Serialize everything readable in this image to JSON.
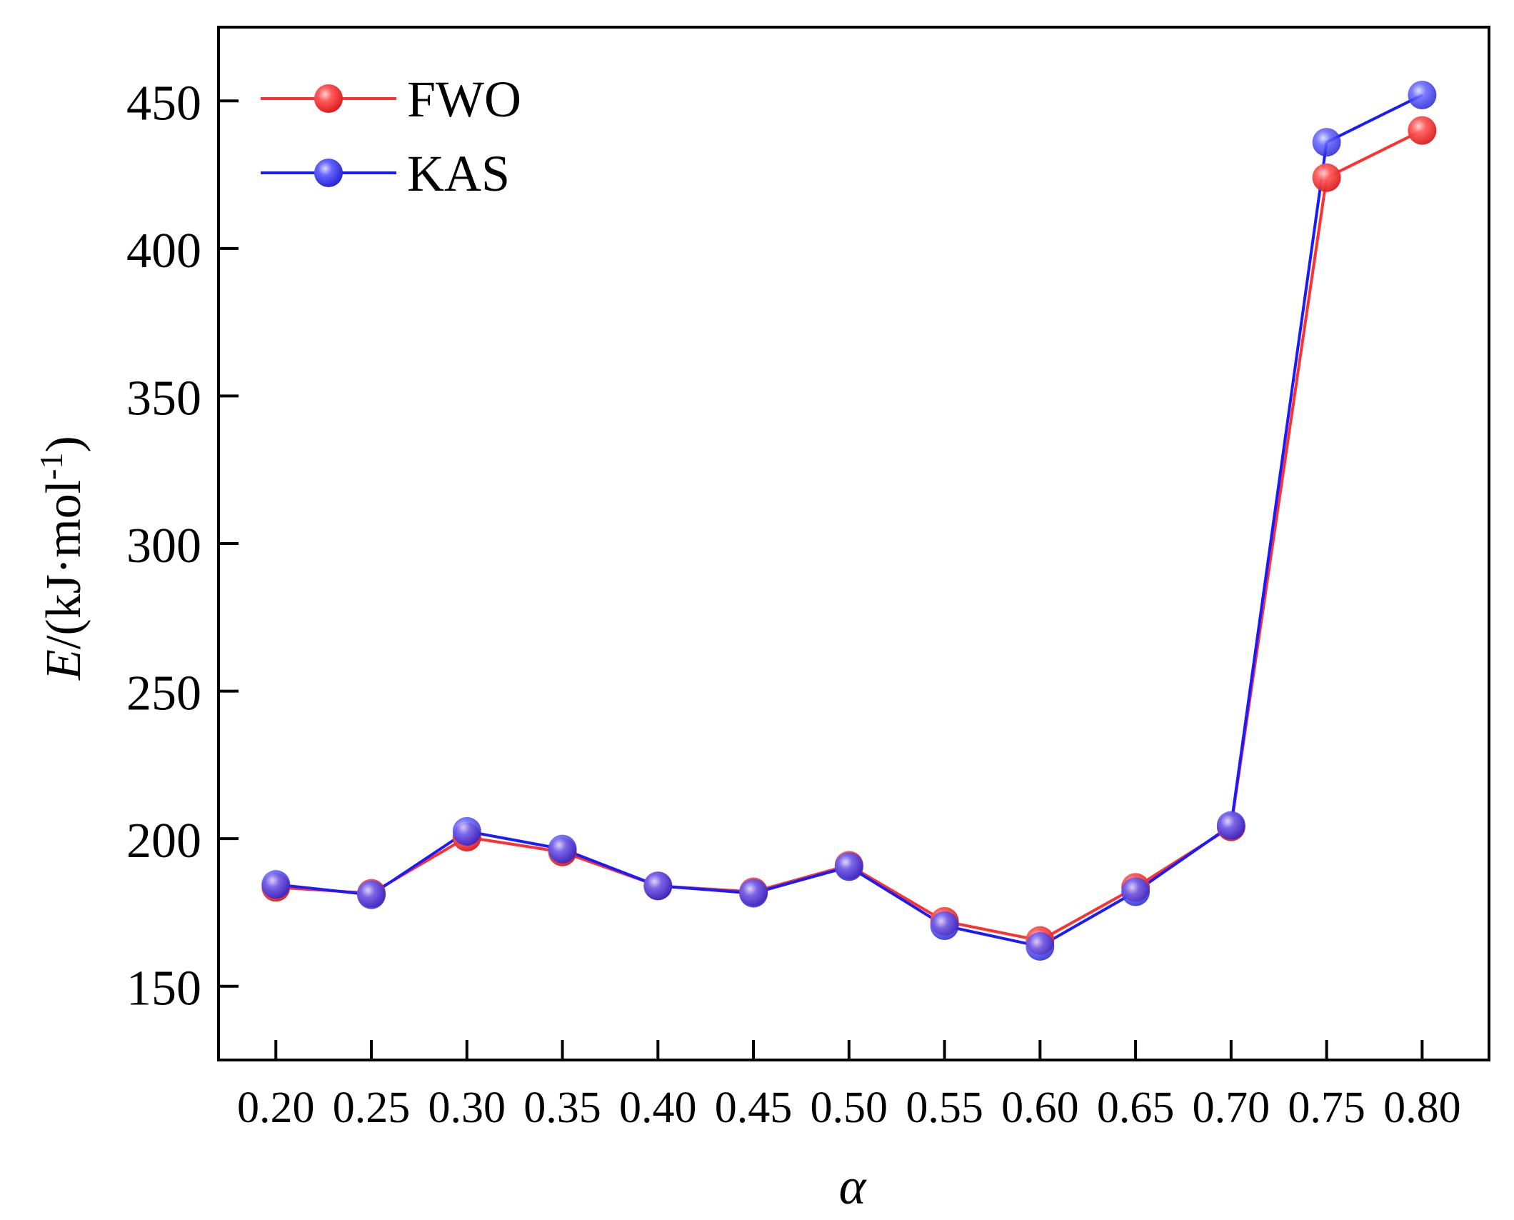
{
  "chart_data": {
    "type": "line",
    "title": "",
    "xlabel": "α",
    "ylabel": {
      "italic": "E",
      "rest": "/(kJ·mol",
      "sup": "-1",
      "close": ")"
    },
    "categories": [
      "0.20",
      "0.25",
      "0.30",
      "0.35",
      "0.40",
      "0.45",
      "0.50",
      "0.55",
      "0.60",
      "0.65",
      "0.70",
      "0.75",
      "0.80"
    ],
    "x": [
      0.2,
      0.25,
      0.3,
      0.35,
      0.4,
      0.45,
      0.5,
      0.55,
      0.6,
      0.65,
      0.7,
      0.75,
      0.8
    ],
    "xlim": [
      0.17,
      0.835
    ],
    "ylim": [
      125,
      475
    ],
    "yticks": [
      150,
      200,
      250,
      300,
      350,
      400,
      450
    ],
    "grid": false,
    "legend_position": "top-left",
    "series": [
      {
        "name": "FWO",
        "color": "#ff3030",
        "marker_color": "#ff4a4a",
        "values": [
          183.5,
          181.5,
          200.5,
          195.5,
          184.0,
          182.0,
          191.0,
          172.0,
          165.5,
          183.5,
          204.0,
          424.0,
          440.0
        ]
      },
      {
        "name": "KAS",
        "color": "#1a1aff",
        "marker_color": "#5050ff",
        "values": [
          184.5,
          181.0,
          202.5,
          196.5,
          184.0,
          181.5,
          190.5,
          170.5,
          163.5,
          182.0,
          204.5,
          436.0,
          452.0
        ]
      }
    ]
  }
}
